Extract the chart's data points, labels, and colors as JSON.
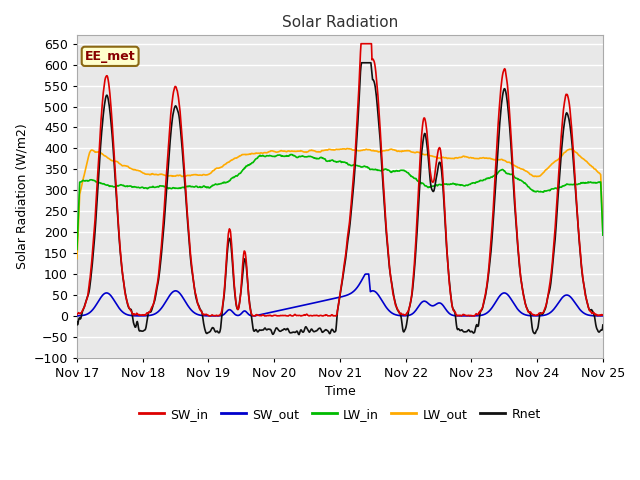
{
  "title": "Solar Radiation",
  "ylabel": "Solar Radiation (W/m2)",
  "xlabel": "Time",
  "xlim": [
    0,
    8
  ],
  "ylim": [
    -100,
    670
  ],
  "yticks": [
    -100,
    -50,
    0,
    50,
    100,
    150,
    200,
    250,
    300,
    350,
    400,
    450,
    500,
    550,
    600,
    650
  ],
  "xtick_labels": [
    "Nov 17",
    "Nov 18",
    "Nov 19",
    "Nov 20",
    "Nov 21",
    "Nov 22",
    "Nov 23",
    "Nov 24",
    "Nov 25"
  ],
  "figure_bg": "#ffffff",
  "plot_bg_color": "#e8e8e8",
  "grid_color": "#ffffff",
  "annotation_text": "EE_met",
  "annotation_box_color": "#ffffcc",
  "annotation_border_color": "#8b6914",
  "colors": {
    "SW_in": "#dd0000",
    "SW_out": "#0000cc",
    "LW_in": "#00bb00",
    "LW_out": "#ffaa00",
    "Rnet": "#111111"
  },
  "line_widths": {
    "SW_in": 1.2,
    "SW_out": 1.2,
    "LW_in": 1.2,
    "LW_out": 1.2,
    "Rnet": 1.2
  }
}
